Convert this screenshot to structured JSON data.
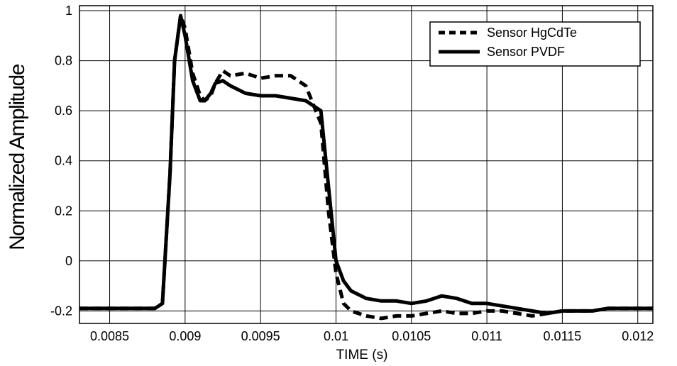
{
  "chart_data": {
    "type": "line",
    "title": "",
    "xlabel": "TIME (s)",
    "ylabel": "Normalized Amplitude",
    "xlim": [
      0.0083,
      0.0121
    ],
    "ylim": [
      -0.25,
      1.02
    ],
    "x_ticks": [
      0.0085,
      0.009,
      0.0095,
      0.01,
      0.0105,
      0.011,
      0.0115,
      0.012
    ],
    "x_tick_labels": [
      "0.0085",
      "0.009",
      "0.0095",
      "0.01",
      "0.0105",
      "0.011",
      "0.0115",
      "0.012"
    ],
    "y_ticks": [
      -0.2,
      0,
      0.2,
      0.4,
      0.6,
      0.8,
      1
    ],
    "y_tick_labels": [
      "-0.2",
      "0",
      "0.2",
      "0.4",
      "0.6",
      "0.8",
      "1"
    ],
    "grid": true,
    "legend_position": "top-right",
    "series": [
      {
        "name": "Sensor HgCdTe",
        "style": "dashed",
        "color": "#000000",
        "x": [
          0.0083,
          0.0085,
          0.0088,
          0.00885,
          0.0089,
          0.00893,
          0.00897,
          0.009,
          0.00905,
          0.0091,
          0.00913,
          0.00917,
          0.0092,
          0.00925,
          0.0093,
          0.0094,
          0.0095,
          0.0096,
          0.0097,
          0.0098,
          0.0099,
          0.00995,
          0.01,
          0.01005,
          0.0101,
          0.0102,
          0.0103,
          0.0104,
          0.0105,
          0.0106,
          0.0107,
          0.0108,
          0.0109,
          0.011,
          0.0111,
          0.0112,
          0.0113,
          0.0114,
          0.0115,
          0.0116,
          0.0117,
          0.0118,
          0.0119,
          0.012,
          0.0121
        ],
        "y": [
          -0.19,
          -0.19,
          -0.19,
          -0.17,
          0.35,
          0.8,
          0.98,
          0.93,
          0.75,
          0.66,
          0.64,
          0.66,
          0.71,
          0.76,
          0.74,
          0.75,
          0.73,
          0.74,
          0.74,
          0.7,
          0.55,
          0.2,
          -0.05,
          -0.17,
          -0.2,
          -0.22,
          -0.23,
          -0.22,
          -0.22,
          -0.21,
          -0.2,
          -0.21,
          -0.21,
          -0.2,
          -0.2,
          -0.21,
          -0.22,
          -0.21,
          -0.2,
          -0.2,
          -0.2,
          -0.19,
          -0.19,
          -0.19,
          -0.19
        ]
      },
      {
        "name": "Sensor PVDF",
        "style": "solid",
        "color": "#000000",
        "x": [
          0.0083,
          0.0085,
          0.0088,
          0.00885,
          0.0089,
          0.00893,
          0.00897,
          0.009,
          0.00905,
          0.0091,
          0.00913,
          0.00917,
          0.0092,
          0.00925,
          0.0093,
          0.0094,
          0.0095,
          0.0096,
          0.0097,
          0.0098,
          0.0099,
          0.00995,
          0.01,
          0.01005,
          0.0101,
          0.0102,
          0.0103,
          0.0104,
          0.0105,
          0.0106,
          0.0107,
          0.0108,
          0.0109,
          0.011,
          0.0111,
          0.0112,
          0.0113,
          0.0114,
          0.0115,
          0.0116,
          0.0117,
          0.0118,
          0.0119,
          0.012,
          0.0121
        ],
        "y": [
          -0.19,
          -0.19,
          -0.19,
          -0.17,
          0.35,
          0.8,
          0.98,
          0.9,
          0.72,
          0.64,
          0.64,
          0.67,
          0.71,
          0.72,
          0.7,
          0.67,
          0.66,
          0.66,
          0.65,
          0.64,
          0.6,
          0.3,
          0.0,
          -0.08,
          -0.12,
          -0.15,
          -0.16,
          -0.16,
          -0.17,
          -0.16,
          -0.14,
          -0.15,
          -0.17,
          -0.17,
          -0.18,
          -0.19,
          -0.2,
          -0.21,
          -0.2,
          -0.2,
          -0.2,
          -0.19,
          -0.19,
          -0.19,
          -0.19
        ]
      }
    ]
  }
}
